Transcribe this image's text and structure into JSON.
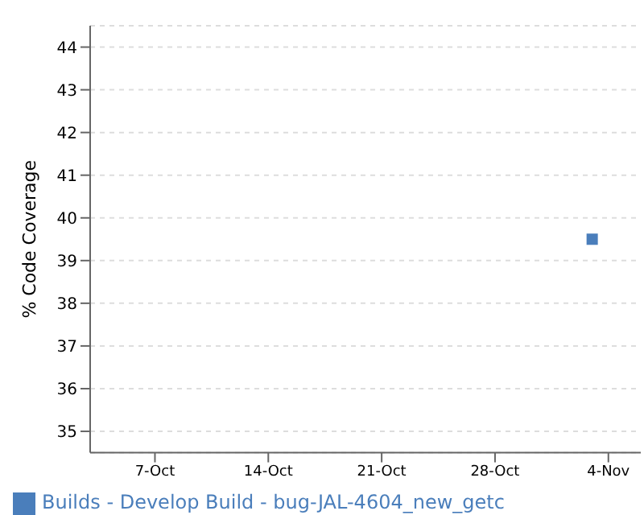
{
  "chart_data": {
    "type": "line",
    "ylabel": "% Code Coverage",
    "x": [
      "--11-03"
    ],
    "series": [
      {
        "name": "Builds - Develop Build - bug-JAL-4604_new_getc",
        "color": "#4a7ebb",
        "values": [
          39.5
        ]
      }
    ],
    "xlim": [
      "--10-03",
      "--11-06"
    ],
    "xticks": [
      {
        "value": "--10-07",
        "label": "7-Oct"
      },
      {
        "value": "--10-14",
        "label": "14-Oct"
      },
      {
        "value": "--10-21",
        "label": "21-Oct"
      },
      {
        "value": "--10-28",
        "label": "28-Oct"
      },
      {
        "value": "--11-04",
        "label": "4-Nov"
      }
    ],
    "ylim": [
      34.5,
      44.5
    ],
    "yticks": [
      35,
      36,
      37,
      38,
      39,
      40,
      41,
      42,
      43,
      44
    ],
    "grid": "y",
    "legend": "bottom",
    "marker": "square"
  }
}
